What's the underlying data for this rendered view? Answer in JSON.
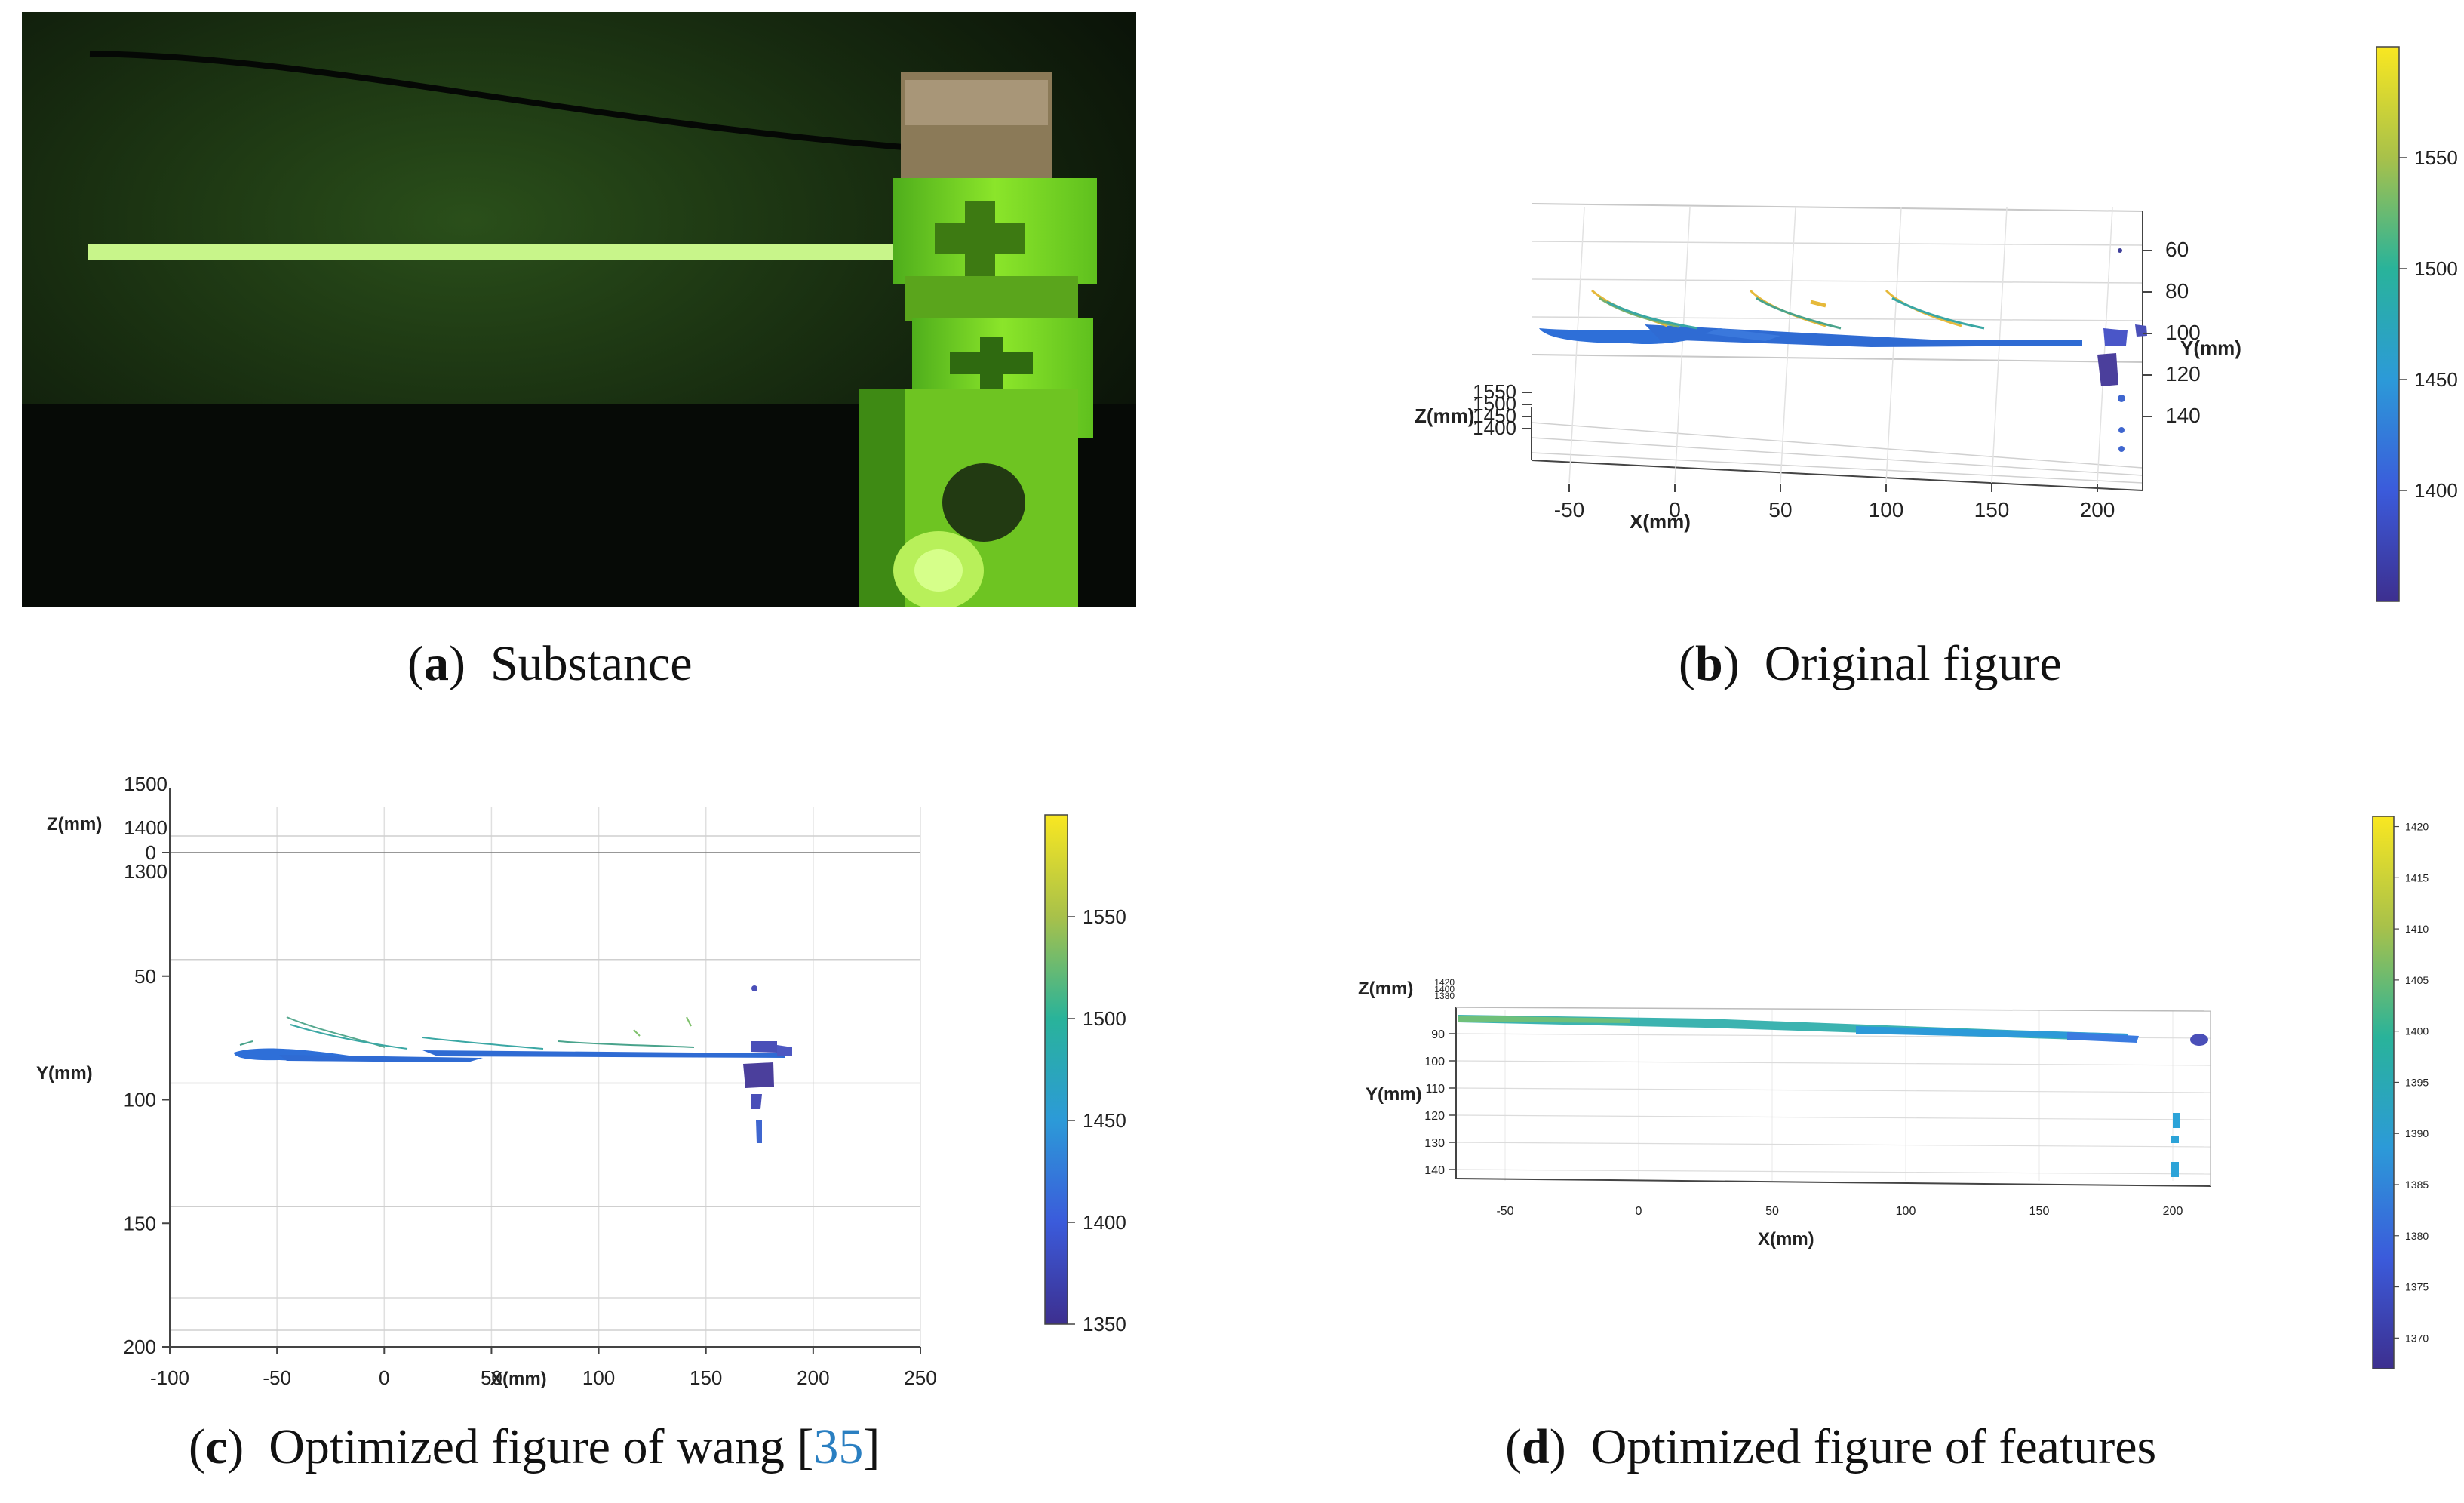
{
  "panels": {
    "a": {
      "letter": "a",
      "caption": "Substance"
    },
    "b": {
      "letter": "b",
      "caption": "Original figure"
    },
    "c": {
      "letter": "c",
      "caption": "Optimized figure of wang [",
      "ref": "35",
      "caption_end": "]"
    },
    "d": {
      "letter": "d",
      "caption": "Optimized figure of features"
    }
  },
  "chart_data": [
    {
      "id": "b",
      "type": "scatter",
      "title": "Original figure",
      "xlabel": "X(mm)",
      "ylabel": "Y(mm)",
      "zlabel": "Z(mm)",
      "x_ticks": [
        "-50",
        "0",
        "50",
        "100",
        "150",
        "200"
      ],
      "y_ticks": [
        "60",
        "80",
        "100",
        "120",
        "140"
      ],
      "z_ticks": [
        "1550",
        "1500",
        "1450",
        "1400"
      ],
      "colorbar_ticks": [
        "1550",
        "1500",
        "1450",
        "1400"
      ],
      "colorbar_range": [
        1350,
        1600
      ]
    },
    {
      "id": "c",
      "type": "scatter",
      "title": "Optimized figure of wang [35]",
      "xlabel": "X(mm)",
      "ylabel": "Y(mm)",
      "zlabel": "Z(mm)",
      "xlim": [
        -100,
        250
      ],
      "ylim": [
        0,
        200
      ],
      "x_ticks": [
        "-100",
        "-50",
        "0",
        "50",
        "100",
        "150",
        "200",
        "250"
      ],
      "y_ticks": [
        "0",
        "50",
        "100",
        "150",
        "200"
      ],
      "z_ticks": [
        "1500",
        "1400",
        "1300"
      ],
      "colorbar_ticks": [
        "1550",
        "1500",
        "1450",
        "1400",
        "1350"
      ],
      "colorbar_range": [
        1350,
        1600
      ]
    },
    {
      "id": "d",
      "type": "scatter",
      "title": "Optimized figure of features",
      "xlabel": "X(mm)",
      "ylabel": "Y(mm)",
      "zlabel": "Z(mm)",
      "x_ticks": [
        "-50",
        "0",
        "50",
        "100",
        "150",
        "200"
      ],
      "y_ticks": [
        "90",
        "100",
        "110",
        "120",
        "130",
        "140"
      ],
      "z_ticks": [
        "1420",
        "1400",
        "1380"
      ],
      "colorbar_ticks": [
        "1420",
        "1415",
        "1410",
        "1405",
        "1400",
        "1395",
        "1390",
        "1385",
        "1380",
        "1375",
        "1370"
      ],
      "colorbar_range": [
        1367,
        1421
      ]
    }
  ],
  "colors": {
    "viridis_top": "#f9e721",
    "viridis_mid": "#21918c",
    "viridis_low": "#3b5bdb",
    "viridis_bottom": "#3d2f8f",
    "photo_green": "#7ddc1e"
  }
}
